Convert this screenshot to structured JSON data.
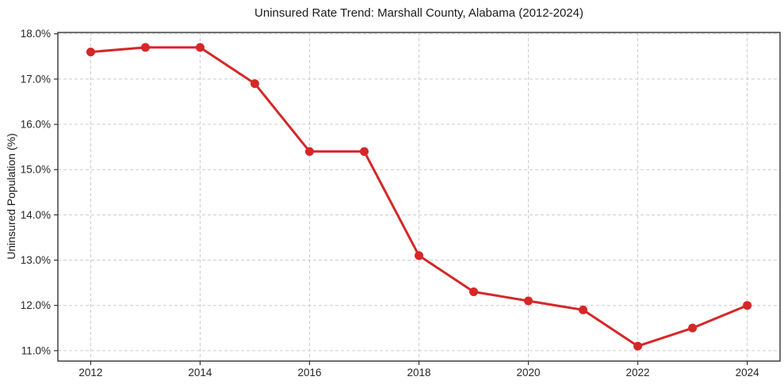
{
  "chart_data": {
    "type": "line",
    "title": "Uninsured Rate Trend: Marshall County, Alabama (2012-2024)",
    "xlabel": "",
    "ylabel": "Uninsured Population (%)",
    "x": [
      2012,
      2013,
      2014,
      2015,
      2016,
      2017,
      2018,
      2019,
      2020,
      2021,
      2022,
      2023,
      2024
    ],
    "y": [
      17.6,
      17.7,
      17.7,
      16.9,
      15.4,
      15.4,
      13.1,
      12.3,
      12.1,
      11.9,
      11.1,
      11.5,
      12.0
    ],
    "series_name": "Uninsured Rate",
    "xlim": [
      2011.4,
      2024.6
    ],
    "ylim": [
      10.77,
      18.03
    ],
    "x_ticks": [
      2012,
      2014,
      2016,
      2018,
      2020,
      2022,
      2024
    ],
    "y_ticks": [
      11.0,
      12.0,
      13.0,
      14.0,
      15.0,
      16.0,
      17.0,
      18.0
    ],
    "y_tick_suffix": "%",
    "grid": true,
    "legend": false,
    "colors": {
      "line": "#d62728",
      "marker": "#d62728",
      "grid": "#cccccc",
      "axis": "#333333",
      "tick_text": "#262626",
      "background": "#ffffff"
    }
  }
}
